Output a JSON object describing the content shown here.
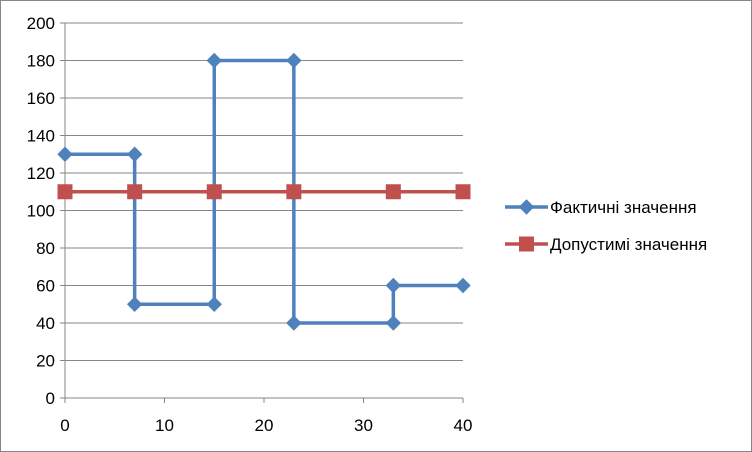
{
  "chart_data": {
    "type": "line",
    "title": "",
    "xlabel": "",
    "ylabel": "",
    "xlim": [
      0,
      40
    ],
    "ylim": [
      0,
      200
    ],
    "x_ticks": [
      0,
      10,
      20,
      30,
      40
    ],
    "y_ticks": [
      0,
      20,
      40,
      60,
      80,
      100,
      120,
      140,
      160,
      180,
      200
    ],
    "grid": "horizontal",
    "legend_position": "right",
    "series": [
      {
        "name": "Фактичні значення",
        "color": "#4F81BD",
        "marker": "diamond",
        "points": [
          [
            0,
            130
          ],
          [
            7,
            130
          ],
          [
            7,
            50
          ],
          [
            15,
            50
          ],
          [
            15,
            180
          ],
          [
            23,
            180
          ],
          [
            23,
            40
          ],
          [
            33,
            40
          ],
          [
            33,
            60
          ],
          [
            40,
            60
          ]
        ]
      },
      {
        "name": "Допустимі значення",
        "color": "#C0504D",
        "marker": "square",
        "points": [
          [
            0,
            110
          ],
          [
            7,
            110
          ],
          [
            15,
            110
          ],
          [
            23,
            110
          ],
          [
            33,
            110
          ],
          [
            40,
            110
          ]
        ]
      }
    ]
  }
}
